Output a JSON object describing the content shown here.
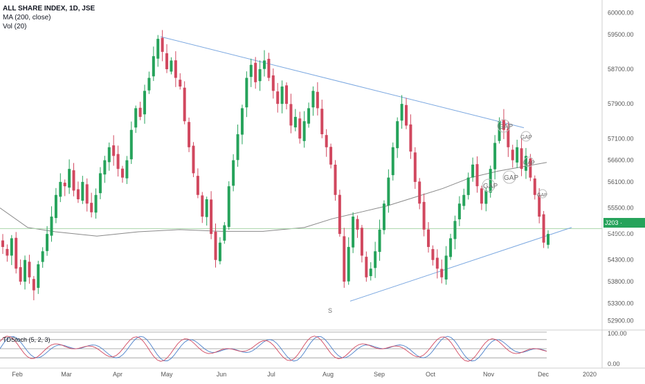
{
  "header": {
    "symbol_title": "ALL SHARE INDEX, 1D, JSE",
    "indicators": [
      "MA (200, close)",
      "Vol (20)"
    ]
  },
  "oscillator": {
    "label": "TDStoch (5, 2, 3)"
  },
  "price_badge": {
    "tag": "J203",
    "value": "55022.87"
  },
  "colors": {
    "up": "#26a35b",
    "down": "#d1485f",
    "trendline": "#7aa7e0",
    "ma": "#888888",
    "price_line": "#a8d5a8"
  },
  "chart_data": [
    {
      "type": "candlestick",
      "title": "ALL SHARE INDEX, 1D, JSE",
      "x_ticks": [
        "Feb",
        "Mar",
        "Apr",
        "May",
        "Jun",
        "Jul",
        "Aug",
        "Sep",
        "Oct",
        "Nov",
        "Dec",
        "2020"
      ],
      "y_ticks": [
        60000,
        59500,
        58700,
        57900,
        57100,
        56600,
        56100,
        55500,
        54900,
        54300,
        53800,
        53300,
        52900
      ],
      "ylim": [
        52700,
        60200
      ],
      "last_price": 55022.87,
      "grid": false,
      "series": [
        {
          "name": "ALL SHARE INDEX",
          "description": "daily OHLC, approximate closes",
          "closes": [
            54600,
            54400,
            54800,
            54100,
            53800,
            54300,
            53900,
            53600,
            54200,
            54500,
            54900,
            55300,
            55800,
            56100,
            56000,
            56400,
            55900,
            55700,
            56100,
            55600,
            55400,
            55800,
            56300,
            56600,
            56900,
            56700,
            56400,
            56200,
            56600,
            57300,
            57800,
            57600,
            58200,
            58500,
            59000,
            59400,
            59100,
            58700,
            58900,
            58500,
            58300,
            57500,
            56900,
            56300,
            55800,
            55300,
            55700,
            54900,
            54300,
            54700,
            55100,
            56000,
            56600,
            57200,
            57800,
            58500,
            58800,
            58400,
            58700,
            58900,
            58500,
            58200,
            57900,
            58300,
            57900,
            57400,
            57600,
            57100,
            57500,
            57800,
            58200,
            57800,
            57200,
            56900,
            56500,
            55800,
            54900,
            53800,
            54600,
            55300,
            55000,
            54400,
            53900,
            54100,
            54500,
            55000,
            55600,
            56200,
            56900,
            57500,
            57900,
            57400,
            56800,
            56100,
            55600,
            55000,
            54600,
            54300,
            54100,
            53900,
            54400,
            54800,
            55200,
            55600,
            55800,
            56200,
            56500,
            56000,
            55600,
            55900,
            56400,
            57000,
            57500,
            57300,
            56900,
            56600,
            56900,
            56400,
            56700,
            56200,
            55800,
            55300,
            54700,
            54900
          ],
          "ma200_start": 55600,
          "ma200_end": 56500
        }
      ],
      "annotations": [
        "GAP",
        "GAP",
        "GAP",
        "GAP",
        "GAP",
        "GAP",
        "S"
      ]
    },
    {
      "type": "line",
      "title": "TDStoch (5, 2, 3)",
      "y_ticks": [
        100.0,
        0.0
      ],
      "ylim": [
        0,
        100
      ],
      "levels": [
        80,
        50,
        20
      ],
      "series": [
        {
          "name": "K",
          "color": "#4a7fc9"
        },
        {
          "name": "D",
          "color": "#d1485f"
        }
      ]
    }
  ]
}
